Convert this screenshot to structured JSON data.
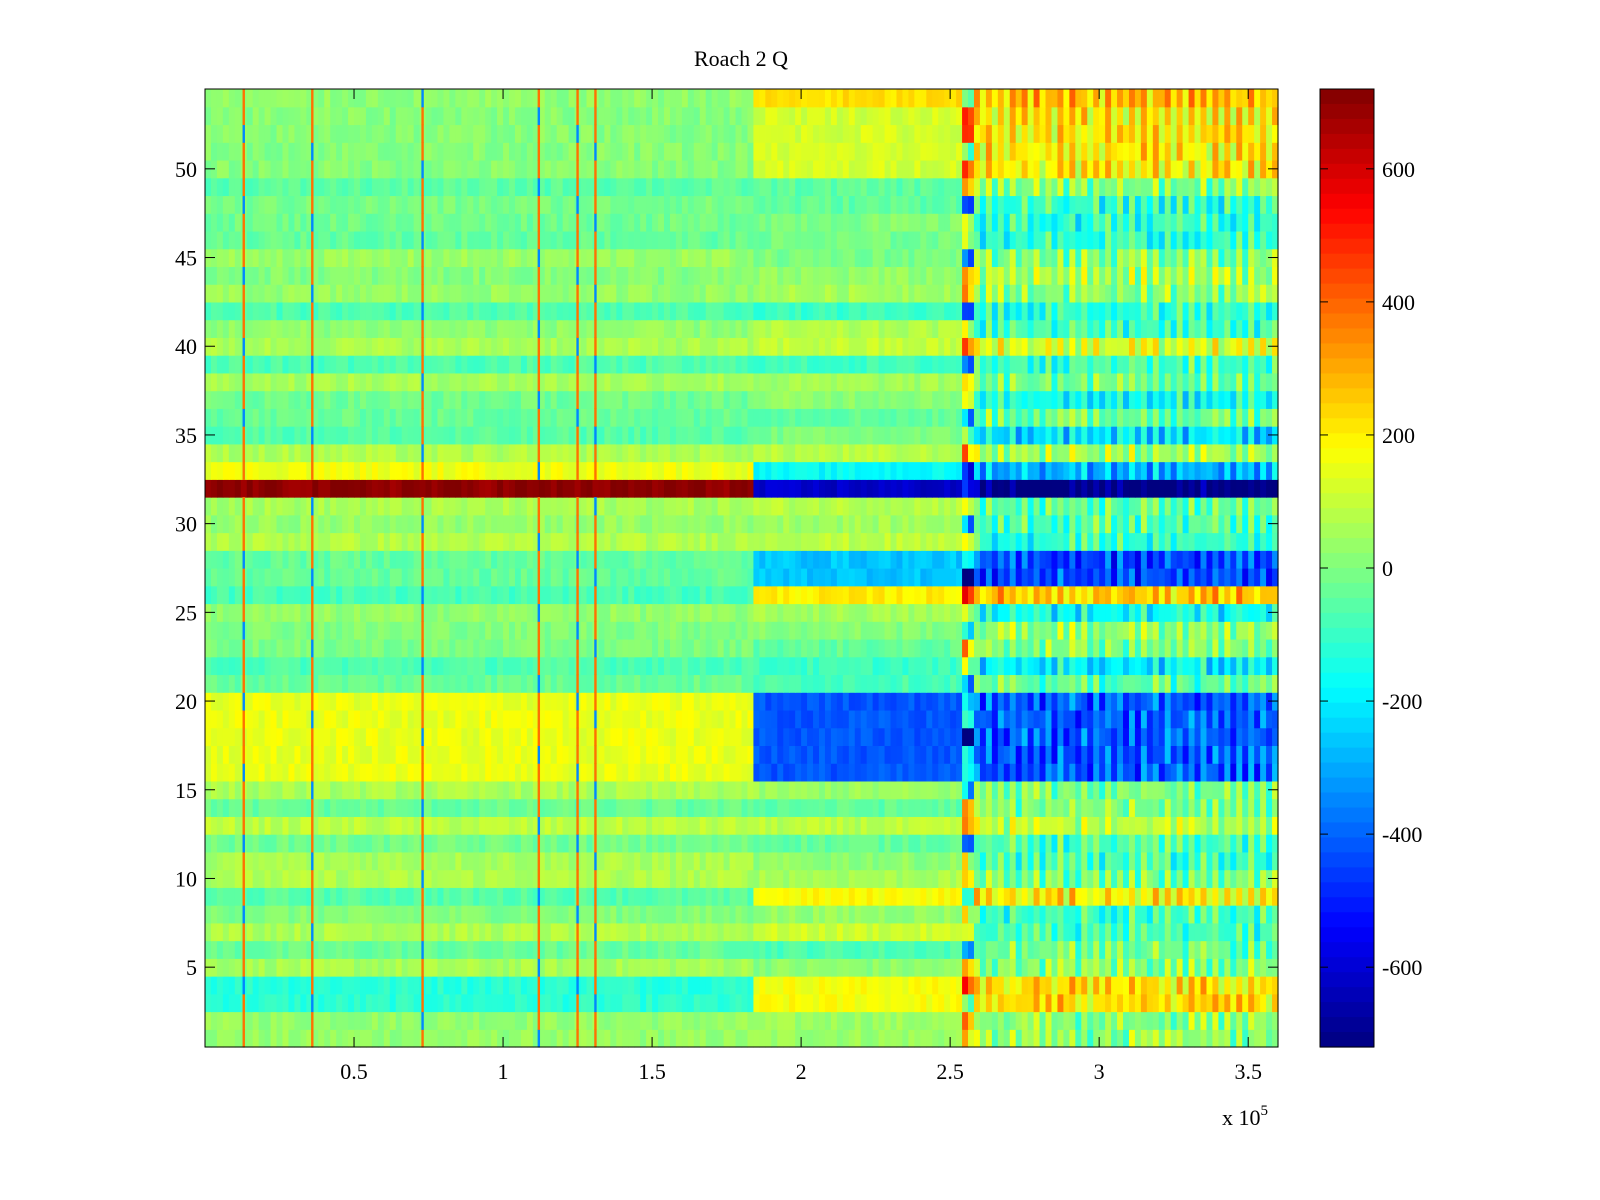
{
  "chart_data": {
    "type": "heatmap",
    "title": "Roach 2 Q",
    "xlabel": "",
    "ylabel": "",
    "x_multiplier_label": "x 10",
    "x_multiplier_exponent": "5",
    "xlim": [
      0,
      360000
    ],
    "ylim": [
      0.5,
      54.5
    ],
    "x_ticks": [
      50000,
      100000,
      150000,
      200000,
      250000,
      300000,
      350000
    ],
    "x_tick_labels": [
      "0.5",
      "1",
      "1.5",
      "2",
      "2.5",
      "3",
      "3.5"
    ],
    "y_ticks": [
      5,
      10,
      15,
      20,
      25,
      30,
      35,
      40,
      45,
      50
    ],
    "y_tick_labels": [
      "5",
      "10",
      "15",
      "20",
      "25",
      "30",
      "35",
      "40",
      "45",
      "50"
    ],
    "rows": 54,
    "colorbar": {
      "colormap": "jet",
      "clim": [
        -720,
        720
      ],
      "ticks": [
        600,
        400,
        200,
        0,
        -200,
        -400,
        -600
      ],
      "tick_labels": [
        "600",
        "400",
        "200",
        "0",
        "-200",
        "-400",
        "-600"
      ]
    },
    "x_segments_breaks": [
      185000,
      255000
    ],
    "vertical_spikes_x": [
      13000,
      36000,
      73000,
      112000,
      125000,
      131000
    ],
    "row_values": [
      {
        "rows": [
          1,
          2
        ],
        "seg1": 30,
        "seg2": 40,
        "seg3": 80
      },
      {
        "rows": [
          3,
          4
        ],
        "seg1": -120,
        "seg2": 170,
        "seg3": 280
      },
      {
        "rows": [
          16,
          20
        ],
        "seg1": 150,
        "seg2": -420,
        "seg3": -350
      },
      {
        "rows": [
          9,
          9
        ],
        "seg1": -60,
        "seg2": 180,
        "seg3": 260
      },
      {
        "rows": [
          32,
          32
        ],
        "seg1": 700,
        "seg2": -620,
        "seg3": -680
      },
      {
        "rows": [
          33,
          33
        ],
        "seg1": 160,
        "seg2": -180,
        "seg3": -220
      },
      {
        "rows": [
          26,
          26
        ],
        "seg1": -80,
        "seg2": 200,
        "seg3": 320
      },
      {
        "rows": [
          27,
          28
        ],
        "seg1": -40,
        "seg2": -260,
        "seg3": -380
      },
      {
        "rows": [
          54,
          54
        ],
        "seg1": 20,
        "seg2": 220,
        "seg3": 330
      },
      {
        "rows": [
          50,
          53
        ],
        "seg1": 10,
        "seg2": 120,
        "seg3": 260
      }
    ]
  }
}
